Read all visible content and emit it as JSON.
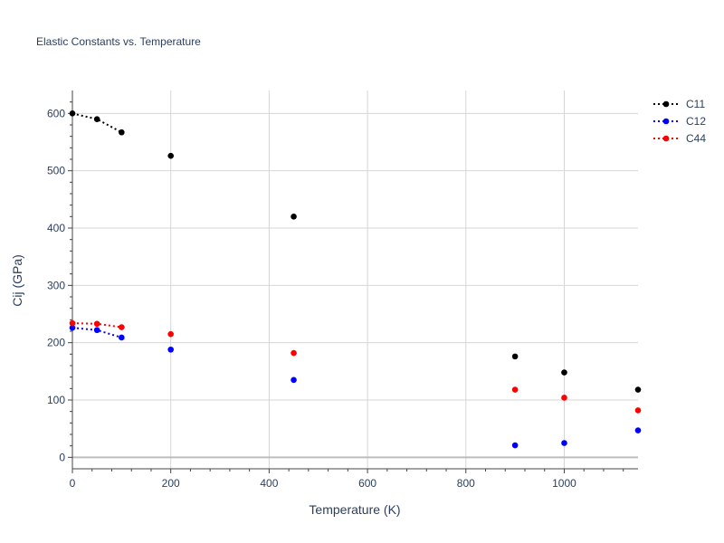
{
  "chart_data": {
    "type": "scatter",
    "title": "Elastic Constants vs. Temperature",
    "xlabel": "Temperature (K)",
    "ylabel": "Cij (GPa)",
    "xlim": [
      0,
      1150
    ],
    "ylim": [
      -20,
      640
    ],
    "x_ticks": [
      0,
      200,
      400,
      600,
      800,
      1000
    ],
    "y_ticks": [
      0,
      100,
      200,
      300,
      400,
      500,
      600
    ],
    "grid": true,
    "legend_position": "top-right",
    "series": [
      {
        "name": "C11",
        "color": "#000000",
        "x": [
          0,
          50,
          100,
          200,
          450,
          900,
          1000,
          1150
        ],
        "y": [
          600,
          590,
          567,
          526,
          420,
          176,
          148,
          118
        ],
        "dotted_line_upto_index": 2
      },
      {
        "name": "C12",
        "color": "#0000ff",
        "x": [
          0,
          50,
          100,
          200,
          450,
          900,
          1000,
          1150
        ],
        "y": [
          226,
          222,
          209,
          188,
          135,
          21,
          25,
          47
        ],
        "dotted_line_upto_index": 2
      },
      {
        "name": "C44",
        "color": "#ff0000",
        "x": [
          0,
          50,
          100,
          200,
          450,
          900,
          1000,
          1150
        ],
        "y": [
          234,
          233,
          227,
          215,
          182,
          118,
          104,
          82
        ],
        "dotted_line_upto_index": 2
      }
    ]
  }
}
